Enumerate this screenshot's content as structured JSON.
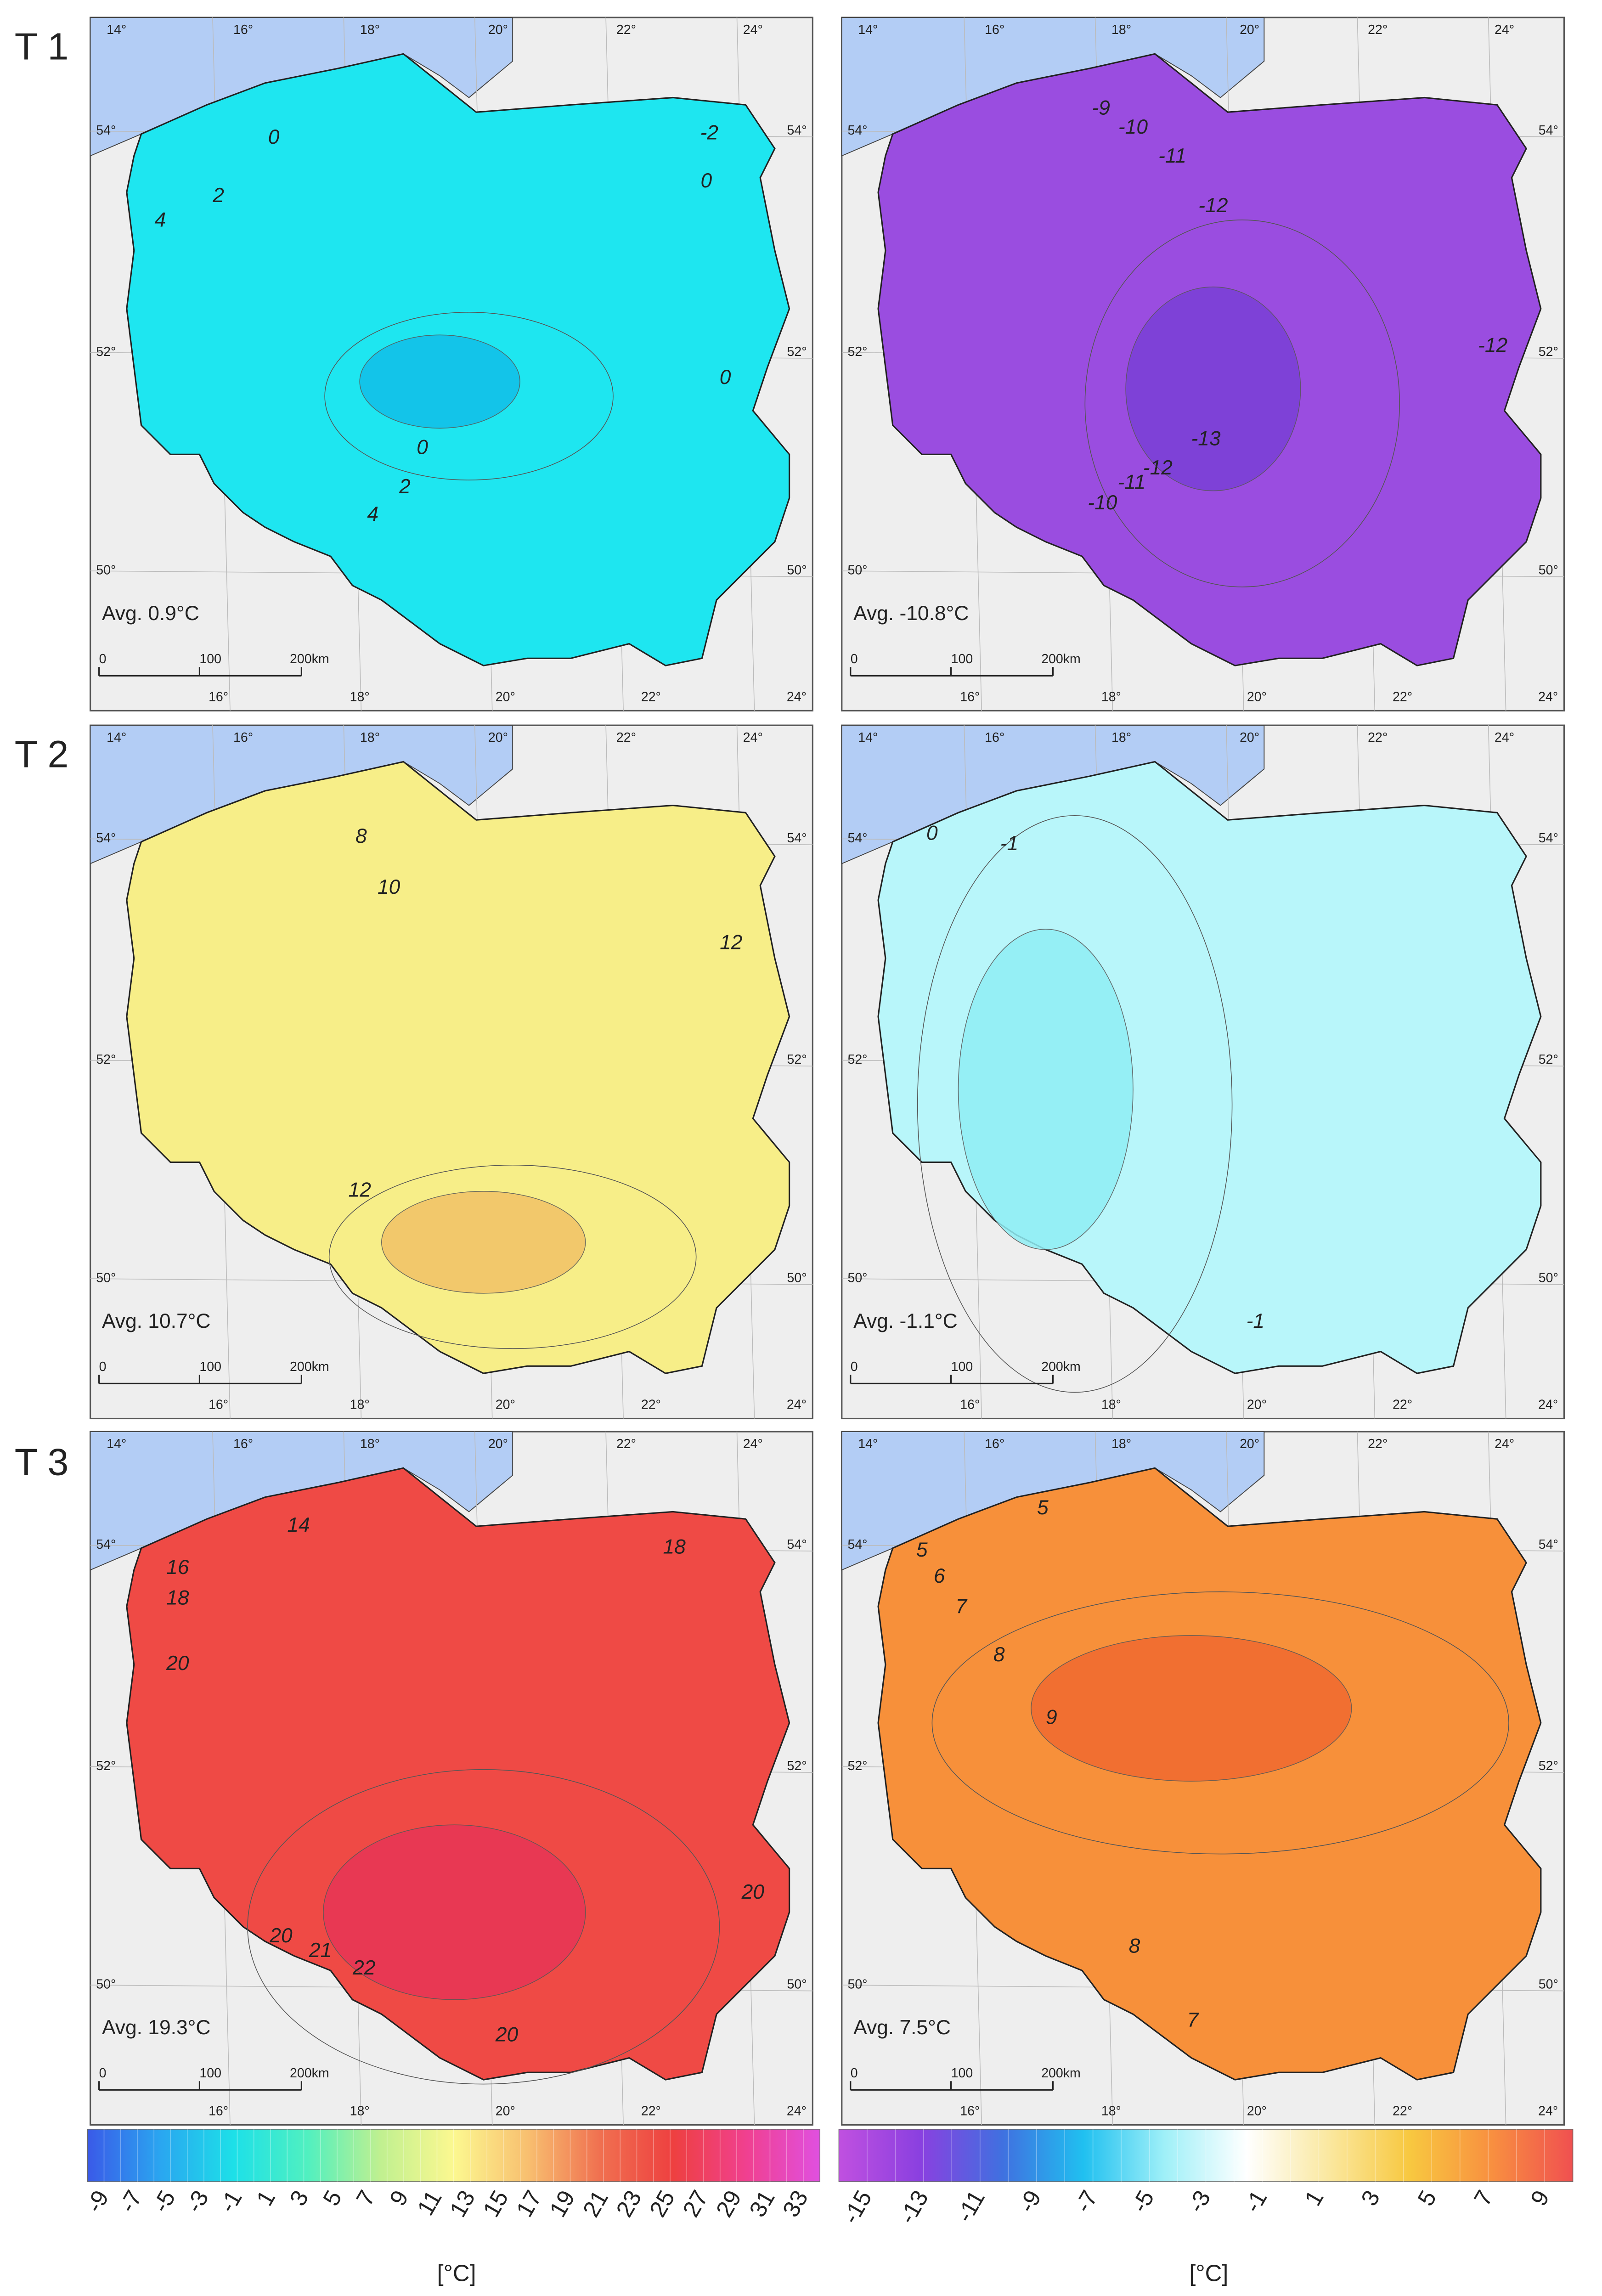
{
  "rows": [
    "T 1",
    "T 2",
    "T 3"
  ],
  "lon_top": [
    "14°",
    "16°",
    "18°",
    "20°",
    "22°",
    "24°"
  ],
  "lon_bottom": [
    "16°",
    "18°",
    "20°",
    "22°",
    "24°"
  ],
  "lat": [
    "54°",
    "52°",
    "50°"
  ],
  "scale": [
    "0",
    "100",
    "200km"
  ],
  "panels": [
    {
      "avg": "Avg. 0.9°C",
      "fill": "#1ee6f0",
      "shade": "#12bfe8",
      "contours": [
        "0",
        "-2",
        "0",
        "2",
        "4",
        "0",
        "0",
        "2",
        "4"
      ]
    },
    {
      "avg": "Avg. -10.8°C",
      "fill": "#9a4de0",
      "shade": "#7a40d6",
      "contours": [
        "-9",
        "-10",
        "-11",
        "-12",
        "-12",
        "-13",
        "-12",
        "-11",
        "-10"
      ]
    },
    {
      "avg": "Avg. 10.7°C",
      "fill": "#f7ee88",
      "shade": "#f2c266",
      "contours": [
        "8",
        "10",
        "12",
        "12"
      ]
    },
    {
      "avg": "Avg. -1.1°C",
      "fill": "#b8f6fa",
      "shade": "#90eef5",
      "contours": [
        "0",
        "-1",
        "-1"
      ]
    },
    {
      "avg": "Avg. 19.3°C",
      "fill": "#ef4a45",
      "shade": "#e73556",
      "contours": [
        "14",
        "18",
        "16",
        "18",
        "20",
        "20",
        "20",
        "21",
        "22",
        "20"
      ]
    },
    {
      "avg": "Avg. 7.5°C",
      "fill": "#f7903a",
      "shade": "#f06a30",
      "contours": [
        "5",
        "5",
        "6",
        "7",
        "8",
        "9",
        "8",
        "7"
      ]
    }
  ],
  "colorbars": [
    {
      "ticks": [
        "-9",
        "-7",
        "-5",
        "-3",
        "-1",
        "1",
        "3",
        "5",
        "7",
        "9",
        "11",
        "13",
        "15",
        "17",
        "19",
        "21",
        "23",
        "25",
        "27",
        "29",
        "31",
        "33"
      ],
      "colors": [
        "#3a5ae8",
        "#2aa6f0",
        "#1de0e8",
        "#50f0c0",
        "#c0f090",
        "#fcf890",
        "#f8c070",
        "#f07050",
        "#ee4040",
        "#f04090",
        "#e050e0"
      ],
      "unit": "[°C]"
    },
    {
      "ticks": [
        "-15",
        "-13",
        "-11",
        "-9",
        "-7",
        "-5",
        "-3",
        "-1",
        "1",
        "3",
        "5",
        "7",
        "9"
      ],
      "colors": [
        "#c050e0",
        "#8a40e0",
        "#4070e0",
        "#20c0f0",
        "#a0f0f8",
        "#ffffff",
        "#fae8a0",
        "#f8c840",
        "#f89040",
        "#f05050"
      ],
      "unit": "[°C]"
    }
  ]
}
